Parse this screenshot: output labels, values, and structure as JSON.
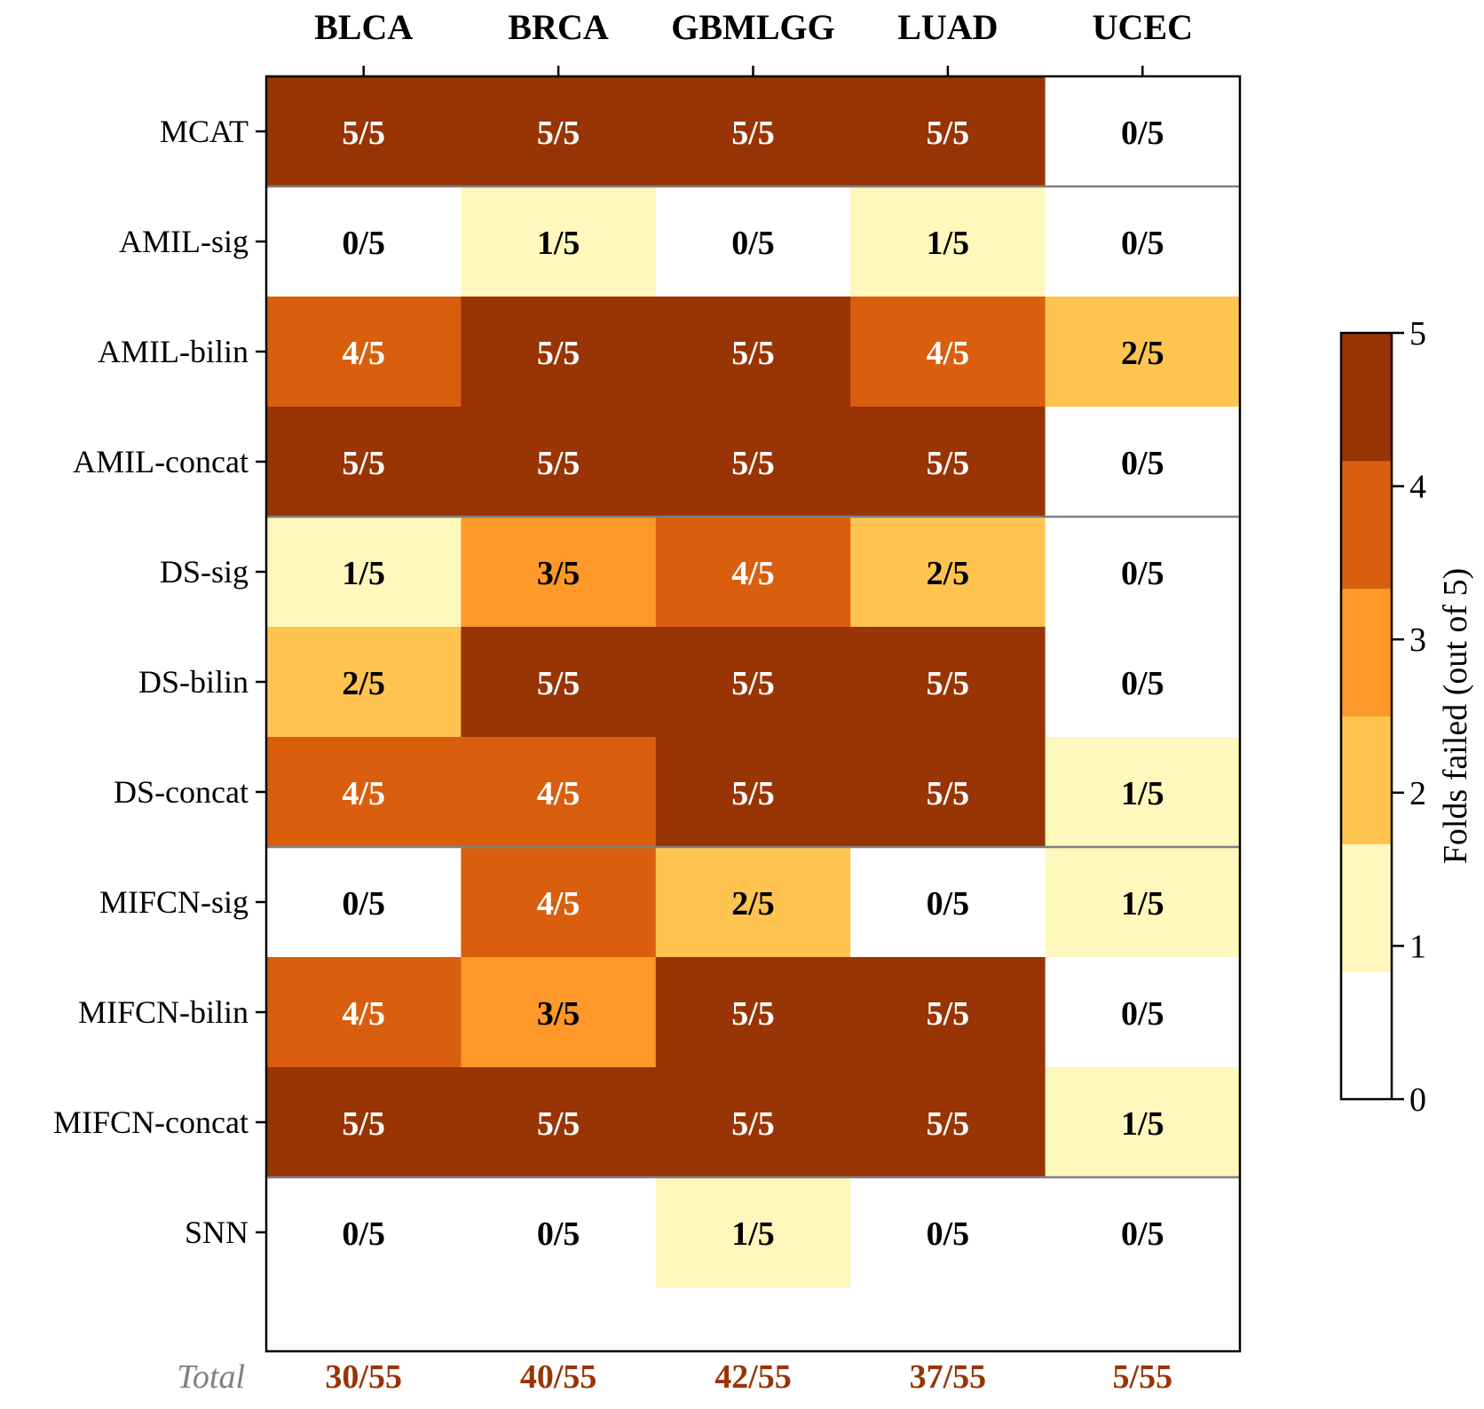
{
  "chart_data": {
    "type": "heatmap",
    "title": "",
    "columns": [
      "BLCA",
      "BRCA",
      "GBMLGG",
      "LUAD",
      "UCEC"
    ],
    "rows": [
      "MCAT",
      "AMIL-sig",
      "AMIL-bilin",
      "AMIL-concat",
      "DS-sig",
      "DS-bilin",
      "DS-concat",
      "MIFCN-sig",
      "MIFCN-bilin",
      "MIFCN-concat",
      "SNN"
    ],
    "values": [
      [
        5,
        5,
        5,
        5,
        0
      ],
      [
        0,
        1,
        0,
        1,
        0
      ],
      [
        4,
        5,
        5,
        4,
        2
      ],
      [
        5,
        5,
        5,
        5,
        0
      ],
      [
        1,
        3,
        4,
        2,
        0
      ],
      [
        2,
        5,
        5,
        5,
        0
      ],
      [
        4,
        4,
        5,
        5,
        1
      ],
      [
        0,
        4,
        2,
        0,
        1
      ],
      [
        4,
        3,
        5,
        5,
        0
      ],
      [
        5,
        5,
        5,
        5,
        1
      ],
      [
        0,
        0,
        1,
        0,
        0
      ]
    ],
    "denominator": 5,
    "group_separators_after_rows": [
      "MCAT",
      "AMIL-concat",
      "DS-concat",
      "MIFCN-concat"
    ],
    "totals_label": "Total",
    "totals": [
      "30/55",
      "40/55",
      "42/55",
      "37/55",
      "5/55"
    ],
    "colorbar": {
      "label": "Folds failed (out of 5)",
      "range": [
        0,
        5
      ],
      "ticks": [
        "0",
        "1",
        "2",
        "3",
        "4",
        "5"
      ],
      "colors": [
        "#ffffff",
        "#fff7bc",
        "#fec44f",
        "#fe9929",
        "#d95f0e",
        "#993404"
      ]
    },
    "colors": {
      "total_text": "#993404",
      "total_label": "#808080",
      "separator": "#808080"
    }
  }
}
